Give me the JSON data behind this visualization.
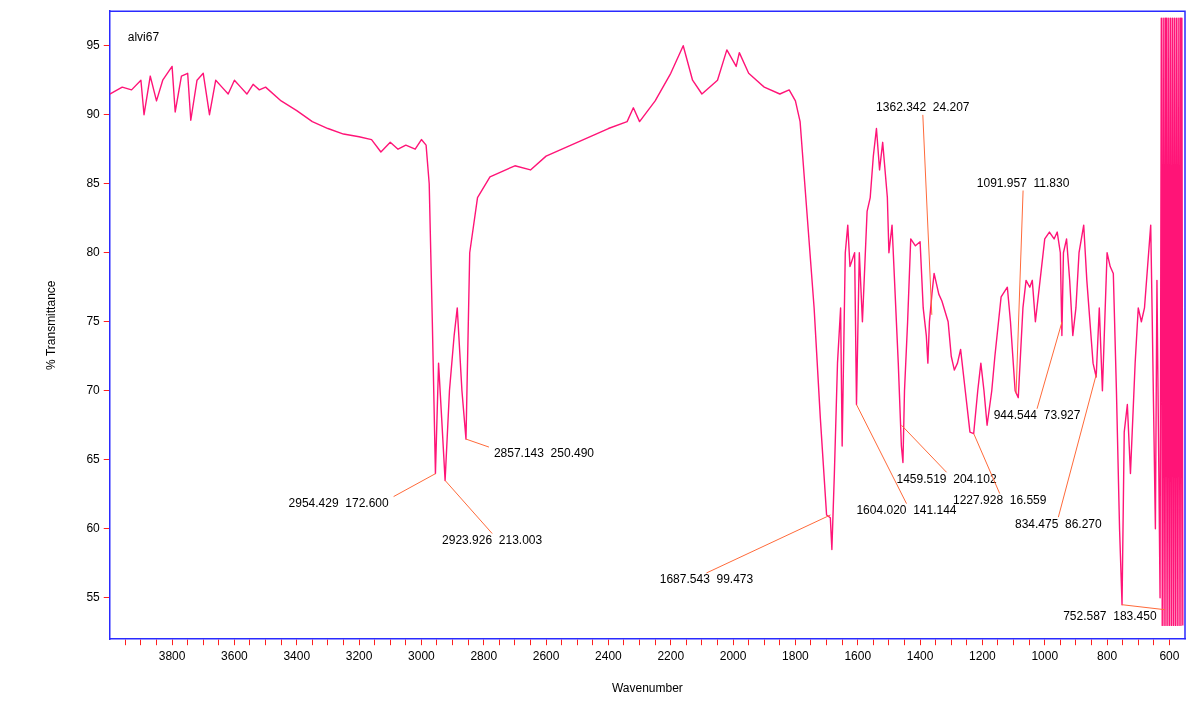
{
  "chart_data": {
    "type": "line",
    "xlabel": "Wavenumber",
    "ylabel": "% Transmittance",
    "xlim": [
      4000,
      550
    ],
    "ylim": [
      52,
      97.5
    ],
    "xticks": [
      {
        "value": 3950,
        "label": null
      },
      {
        "value": 3900,
        "label": null
      },
      {
        "value": 3850,
        "label": null
      },
      3800,
      {
        "value": 3750,
        "label": null
      },
      {
        "value": 3700,
        "label": null
      },
      {
        "value": 3650,
        "label": null
      },
      3600,
      {
        "value": 3550,
        "label": null
      },
      {
        "value": 3500,
        "label": null
      },
      {
        "value": 3450,
        "label": null
      },
      3400,
      {
        "value": 3350,
        "label": null
      },
      {
        "value": 3300,
        "label": null
      },
      {
        "value": 3250,
        "label": null
      },
      3200,
      {
        "value": 3150,
        "label": null
      },
      {
        "value": 3100,
        "label": null
      },
      {
        "value": 3050,
        "label": null
      },
      3000,
      {
        "value": 2950,
        "label": null
      },
      {
        "value": 2900,
        "label": null
      },
      {
        "value": 2850,
        "label": null
      },
      2800,
      {
        "value": 2750,
        "label": null
      },
      {
        "value": 2700,
        "label": null
      },
      {
        "value": 2650,
        "label": null
      },
      2600,
      {
        "value": 2550,
        "label": null
      },
      {
        "value": 2500,
        "label": null
      },
      {
        "value": 2450,
        "label": null
      },
      2400,
      {
        "value": 2350,
        "label": null
      },
      {
        "value": 2300,
        "label": null
      },
      {
        "value": 2250,
        "label": null
      },
      2200,
      {
        "value": 2150,
        "label": null
      },
      {
        "value": 2100,
        "label": null
      },
      {
        "value": 2050,
        "label": null
      },
      2000,
      {
        "value": 1950,
        "label": null
      },
      {
        "value": 1900,
        "label": null
      },
      {
        "value": 1850,
        "label": null
      },
      1800,
      {
        "value": 1750,
        "label": null
      },
      {
        "value": 1700,
        "label": null
      },
      {
        "value": 1650,
        "label": null
      },
      1600,
      {
        "value": 1550,
        "label": null
      },
      {
        "value": 1500,
        "label": null
      },
      {
        "value": 1450,
        "label": null
      },
      1400,
      {
        "value": 1350,
        "label": null
      },
      {
        "value": 1300,
        "label": null
      },
      {
        "value": 1250,
        "label": null
      },
      1200,
      {
        "value": 1150,
        "label": null
      },
      {
        "value": 1100,
        "label": null
      },
      {
        "value": 1050,
        "label": null
      },
      1000,
      {
        "value": 950,
        "label": null
      },
      {
        "value": 900,
        "label": null
      },
      {
        "value": 850,
        "label": null
      },
      800,
      {
        "value": 750,
        "label": null
      },
      {
        "value": 700,
        "label": null
      },
      {
        "value": 650,
        "label": null
      },
      600
    ],
    "yticks": [
      55,
      60,
      65,
      70,
      75,
      80,
      85,
      90,
      95
    ],
    "grid": false,
    "legend": false,
    "marker": "none",
    "line_style": "solid",
    "series": [
      {
        "color": "#ff1477",
        "x": [
          4000,
          3960,
          3930,
          3900,
          3890,
          3870,
          3850,
          3830,
          3800,
          3790,
          3770,
          3750,
          3740,
          3720,
          3700,
          3680,
          3660,
          3640,
          3620,
          3600,
          3580,
          3560,
          3540,
          3520,
          3500,
          3450,
          3400,
          3350,
          3300,
          3250,
          3200,
          3160,
          3130,
          3100,
          3075,
          3050,
          3020,
          3000,
          2985,
          2975,
          2965,
          2955,
          2945,
          2935,
          2924,
          2910,
          2895,
          2885,
          2870,
          2857,
          2845,
          2820,
          2780,
          2700,
          2650,
          2600,
          2500,
          2400,
          2340,
          2320,
          2300,
          2250,
          2200,
          2160,
          2130,
          2100,
          2050,
          2020,
          1990,
          1980,
          1950,
          1900,
          1850,
          1820,
          1800,
          1785,
          1770,
          1740,
          1720,
          1700,
          1688,
          1683,
          1675,
          1665,
          1655,
          1650,
          1640,
          1632,
          1625,
          1610,
          1604,
          1595,
          1585,
          1570,
          1560,
          1550,
          1540,
          1530,
          1520,
          1505,
          1500,
          1490,
          1470,
          1460,
          1455,
          1450,
          1440,
          1430,
          1415,
          1400,
          1390,
          1380,
          1375,
          1370,
          1362,
          1355,
          1340,
          1330,
          1310,
          1300,
          1290,
          1280,
          1270,
          1255,
          1240,
          1228,
          1215,
          1205,
          1195,
          1185,
          1170,
          1160,
          1140,
          1120,
          1110,
          1095,
          1085,
          1070,
          1060,
          1048,
          1040,
          1030,
          1015,
          1000,
          985,
          970,
          960,
          950,
          945,
          940,
          930,
          920,
          910,
          900,
          890,
          875,
          865,
          845,
          835,
          825,
          815,
          800,
          790,
          780,
          770,
          760,
          752,
          745,
          735,
          725,
          710,
          700,
          690,
          680,
          670,
          660,
          655,
          645,
          640,
          630,
          626,
          623,
          620,
          617,
          614,
          611,
          608,
          605,
          602,
          599,
          596,
          593,
          590,
          587,
          584,
          581,
          578,
          575,
          572,
          569,
          566,
          563,
          560,
          557
        ],
        "values": [
          91.5,
          92,
          91.8,
          92.5,
          90,
          92.8,
          91,
          92.5,
          93.5,
          90.2,
          92.8,
          93,
          89.6,
          92.5,
          93,
          90,
          92.5,
          92,
          91.5,
          92.5,
          92,
          91.5,
          92.2,
          91.8,
          92,
          91,
          90.3,
          89.5,
          89,
          88.6,
          88.4,
          88.2,
          87.3,
          88,
          87.5,
          87.8,
          87.5,
          88.2,
          87.8,
          85,
          75,
          64,
          72,
          68,
          63.5,
          70,
          74,
          76,
          70,
          66.5,
          80,
          84,
          85.5,
          86.3,
          86,
          87,
          88,
          89,
          89.5,
          90.5,
          89.5,
          91,
          93,
          95,
          92.5,
          91.5,
          92.5,
          94.7,
          93.5,
          94.5,
          93,
          92,
          91.5,
          91.8,
          91,
          89.5,
          85,
          76,
          68,
          61,
          60.8,
          58.5,
          64,
          72,
          76,
          66,
          80,
          82,
          79,
          80,
          69,
          80,
          75,
          83,
          84,
          87,
          89,
          86,
          88,
          84,
          80,
          82,
          72,
          66,
          64.8,
          70,
          75,
          81,
          80.5,
          80.8,
          76,
          74,
          72,
          75,
          77,
          78.5,
          77,
          76.5,
          75,
          72.5,
          71.5,
          72,
          73,
          70,
          67,
          66.9,
          70,
          72,
          70,
          67.5,
          70,
          72.5,
          76.8,
          77.5,
          75,
          70,
          69.5,
          76,
          78,
          77.5,
          78,
          75,
          78,
          81,
          81.5,
          81,
          81.5,
          80,
          74,
          80,
          81,
          78,
          74,
          76,
          80,
          82,
          78,
          72,
          71,
          76,
          70,
          80,
          79,
          78.5,
          70,
          60,
          54.5,
          67,
          69,
          64,
          72,
          76,
          75,
          76,
          79,
          82,
          75,
          60,
          78,
          55,
          97,
          53,
          97,
          53,
          97,
          53,
          97,
          53,
          97,
          53,
          97,
          53,
          97,
          53,
          97,
          53,
          97,
          53,
          97,
          53,
          97,
          53,
          97,
          53
        ]
      }
    ],
    "annotations": [
      "alvi67",
      {
        "text": "2954.429  172.600",
        "x": 2954.429,
        "y": 64
      },
      {
        "text": "2923.926  213.003",
        "x": 2923.926,
        "y": 63.5
      },
      {
        "text": "2857.143  250.490",
        "x": 2857.143,
        "y": 66.5
      },
      {
        "text": "1687.543  99.473",
        "x": 1687.543,
        "y": 61
      },
      {
        "text": "1604.020  141.144",
        "x": 1604.02,
        "y": 69
      },
      {
        "text": "1459.519  204.102",
        "x": 1459.519,
        "y": 67.5
      },
      {
        "text": "1362.342  24.207",
        "x": 1362.342,
        "y": 75.5
      },
      {
        "text": "1091.957  11.830",
        "x": 1091.957,
        "y": 69.8
      },
      {
        "text": "1227.928  16.559",
        "x": 1227.928,
        "y": 66.9
      },
      {
        "text": "944.544  73.927",
        "x": 944.544,
        "y": 75
      },
      {
        "text": "834.475  86.270",
        "x": 834.475,
        "y": 71.2
      },
      {
        "text": "752.587  183.450",
        "x": 752.587,
        "y": 54.5
      }
    ]
  }
}
